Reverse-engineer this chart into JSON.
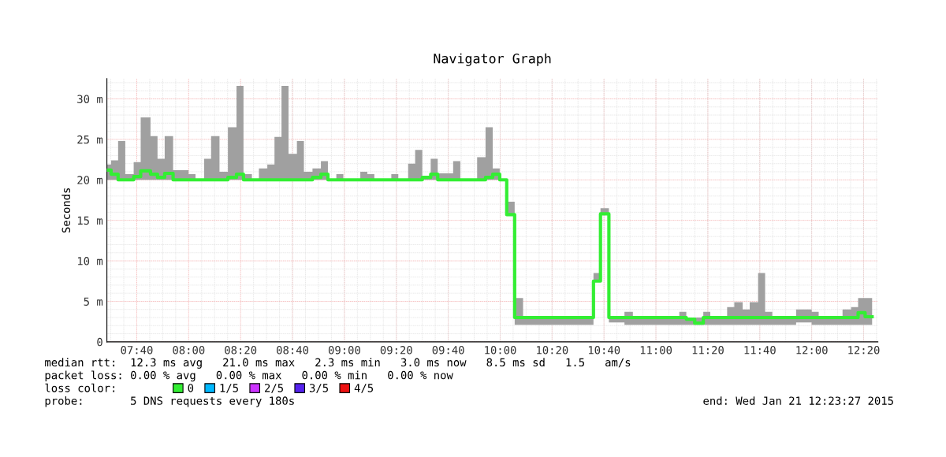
{
  "chart_data": {
    "type": "step",
    "title": "Navigator Graph",
    "ylabel": "Seconds",
    "legend_title": "loss color:",
    "legend": "bottom",
    "grid": true,
    "xlim": [
      7.475,
      12.425
    ],
    "ylim": [
      0,
      32.5
    ],
    "xticks": [
      {
        "value": 7.6667,
        "label": "07:40"
      },
      {
        "value": 8,
        "label": "08:00"
      },
      {
        "value": 8.3333,
        "label": "08:20"
      },
      {
        "value": 8.6667,
        "label": "08:40"
      },
      {
        "value": 9,
        "label": "09:00"
      },
      {
        "value": 9.3333,
        "label": "09:20"
      },
      {
        "value": 9.6667,
        "label": "09:40"
      },
      {
        "value": 10,
        "label": "10:00"
      },
      {
        "value": 10.3333,
        "label": "10:20"
      },
      {
        "value": 10.6667,
        "label": "10:40"
      },
      {
        "value": 11,
        "label": "11:00"
      },
      {
        "value": 11.3333,
        "label": "11:20"
      },
      {
        "value": 11.6667,
        "label": "11:40"
      },
      {
        "value": 12,
        "label": "12:00"
      },
      {
        "value": 12.3333,
        "label": "12:20"
      }
    ],
    "yticks": [
      0,
      {
        "value": 5,
        "label": "5 m"
      },
      {
        "value": 10,
        "label": "10 m"
      },
      {
        "value": 15,
        "label": "15 m"
      },
      {
        "value": 20,
        "label": "20 m"
      },
      {
        "value": 25,
        "label": "25 m"
      },
      {
        "value": 30,
        "label": "30 m"
      }
    ],
    "series": [
      {
        "name": "0",
        "color": "#33ee33",
        "x": [
          7.475,
          7.502,
          7.547,
          7.593,
          7.647,
          7.692,
          7.755,
          7.8,
          7.846,
          7.9,
          7.999,
          8.044,
          8.099,
          8.144,
          8.198,
          8.252,
          8.307,
          8.352,
          8.406,
          8.451,
          8.505,
          8.551,
          8.596,
          8.641,
          8.695,
          8.74,
          8.795,
          8.849,
          8.894,
          8.948,
          8.993,
          9.102,
          9.147,
          9.192,
          9.301,
          9.346,
          9.409,
          9.454,
          9.5,
          9.554,
          9.599,
          9.698,
          9.744,
          9.852,
          9.906,
          9.952,
          9.997,
          10.042,
          10.093,
          10.147,
          10.599,
          10.644,
          10.698,
          10.798,
          10.852,
          11.15,
          11.195,
          11.249,
          11.304,
          11.349,
          11.457,
          11.503,
          11.557,
          11.602,
          11.656,
          11.701,
          11.747,
          11.9,
          12.0,
          12.045,
          12.198,
          12.253,
          12.298,
          12.343,
          12.388
        ],
        "values": [
          21.2,
          20.7,
          20,
          20,
          20.4,
          21.1,
          20.7,
          20.3,
          20.8,
          20,
          20,
          20,
          20,
          20,
          20,
          20.3,
          20.7,
          20,
          20,
          20,
          20,
          20,
          20,
          20,
          20,
          20,
          20.3,
          20.7,
          20,
          20,
          20,
          20,
          20,
          20,
          20,
          20,
          20,
          20,
          20.3,
          20.7,
          20,
          20,
          20,
          20,
          20.3,
          20.7,
          20,
          15.7,
          3.0,
          3.0,
          7.5,
          15.8,
          3.0,
          3.0,
          3.0,
          3.0,
          2.8,
          2.3,
          3.0,
          3.0,
          3.0,
          3.0,
          3.0,
          3.0,
          3.0,
          3.0,
          3.0,
          3.0,
          3.0,
          3.0,
          3.0,
          3.0,
          3.6,
          3.1,
          3.1
        ],
        "lower": [
          20,
          20,
          20,
          20,
          20,
          20,
          20,
          20,
          20,
          20,
          20,
          20,
          20,
          20,
          20,
          20,
          20,
          20,
          20,
          20,
          20,
          20,
          20,
          20,
          20,
          20,
          20,
          20,
          20,
          20,
          20,
          20,
          20,
          20,
          20,
          20,
          20,
          20,
          20,
          20,
          20,
          20,
          20,
          20,
          20,
          20,
          20,
          15.7,
          2.1,
          2.1,
          7.5,
          15.8,
          2.4,
          2.1,
          2.1,
          2.1,
          2.1,
          2.1,
          2.1,
          2.1,
          2.1,
          2.1,
          2.1,
          2.1,
          2.1,
          2.1,
          2.1,
          2.4,
          2.1,
          2.1,
          2.1,
          2.1,
          2.1,
          2.1,
          2.1
        ],
        "upper": [
          21.9,
          22.4,
          24.8,
          20.7,
          22.2,
          27.7,
          25.4,
          22.6,
          25.4,
          21.2,
          20.7,
          20,
          22.6,
          25.4,
          21,
          26.5,
          31.6,
          20.7,
          20,
          21.4,
          21.9,
          25.3,
          31.6,
          23.2,
          24.8,
          21,
          21.4,
          22.3,
          20,
          20.7,
          20,
          21,
          20.7,
          20,
          20.7,
          20,
          22,
          23.7,
          20.5,
          22.6,
          20.8,
          22.3,
          20,
          22.8,
          26.5,
          21.4,
          20,
          17.3,
          5.4,
          3.0,
          8.5,
          16.5,
          3.0,
          3.7,
          3.0,
          3.7,
          3.0,
          3.0,
          3.7,
          3.0,
          4.3,
          4.9,
          4.0,
          4.9,
          8.5,
          3.7,
          3.0,
          4.0,
          3.7,
          3.0,
          4.0,
          4.3,
          5.4,
          5.4,
          5.4
        ]
      },
      {
        "name": "1/5",
        "color": "#00b8ff"
      },
      {
        "name": "2/5",
        "color": "#cc33ff"
      },
      {
        "name": "3/5",
        "color": "#5522ee"
      },
      {
        "name": "4/5",
        "color": "#ee1111"
      }
    ],
    "annotations": [
      "median rtt:  12.3 ms avg   21.0 ms max   2.3 ms min   3.0 ms now   8.5 ms sd   1.5   am/s",
      "packet loss: 0.00 % avg   0.00 % max   0.00 % min   0.00 % now",
      "probe:       5 DNS requests every 180s",
      "end: Wed Jan 21 12:23:27 2015"
    ]
  }
}
